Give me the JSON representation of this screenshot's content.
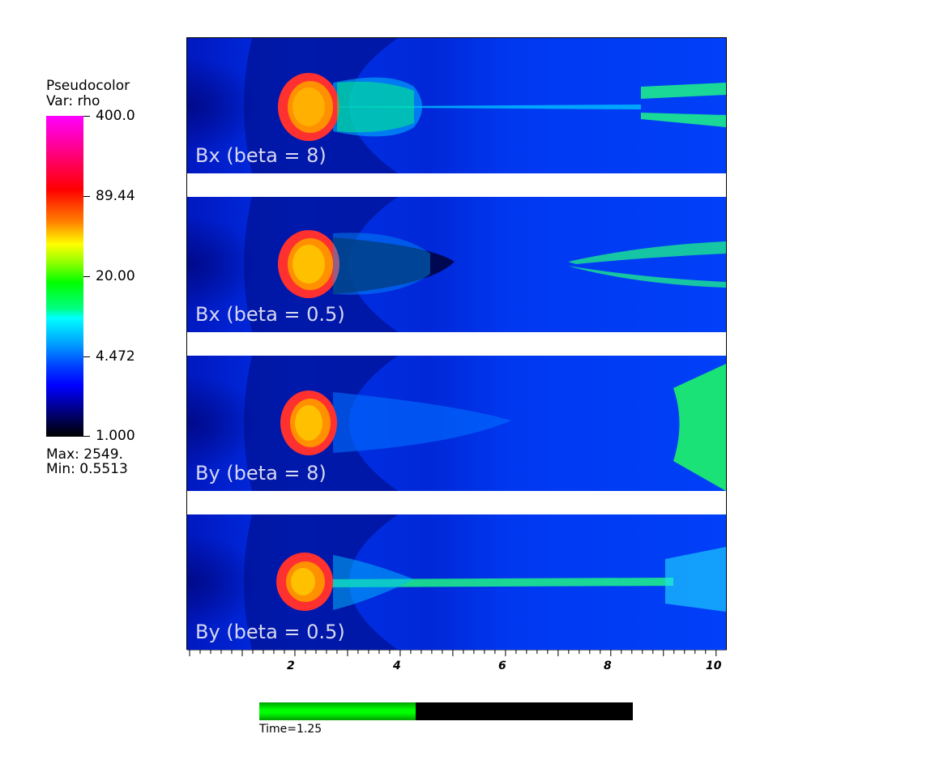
{
  "legend": {
    "title_line1": "Pseudocolor",
    "title_line2": "Var: rho",
    "labels": [
      "400.0",
      "89.44",
      "20.00",
      "4.472",
      "1.000"
    ],
    "max": "Max:  2549.",
    "min": "Min:  0.5513"
  },
  "panels": [
    {
      "label": "Bx (beta = 8)"
    },
    {
      "label": "Bx (beta = 0.5)"
    },
    {
      "label": "By (beta = 8)"
    },
    {
      "label": "By (beta = 0.5)"
    }
  ],
  "axis": {
    "ticks": [
      "2",
      "4",
      "6",
      "8",
      "10"
    ]
  },
  "time": {
    "label": "Time=1.25",
    "progress_fraction": 0.418
  },
  "colors": {
    "background": "#0030e8",
    "label_text": "#d8d8f0"
  }
}
